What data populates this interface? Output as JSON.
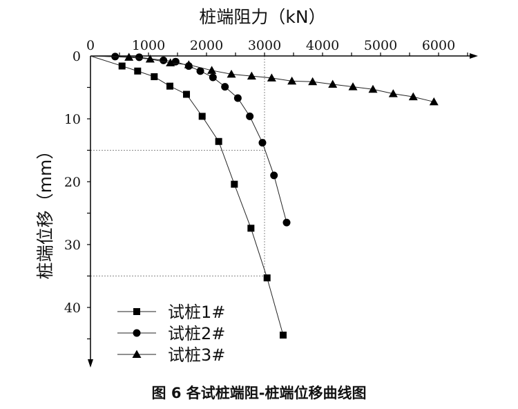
{
  "chart_data": {
    "type": "line",
    "title": "图 6 各试桩端阻-桩端位移曲线图",
    "xlabel": "桩端阻力（kN）",
    "ylabel": "桩端位移（mm）",
    "xlim": [
      0,
      6600
    ],
    "ylim": [
      0,
      49
    ],
    "y_inverted": true,
    "x_ticks": [
      0,
      1000,
      2000,
      3000,
      4000,
      5000,
      6000
    ],
    "y_ticks": [
      0,
      10,
      20,
      30,
      40
    ],
    "x_tick_labels": [
      "0",
      "1000",
      "2000",
      "3000",
      "4000",
      "5000",
      "6000"
    ],
    "y_tick_labels": [
      "0",
      "10",
      "20",
      "30",
      "40"
    ],
    "legend_position": "bottom-left",
    "reference_lines": {
      "vertical_x": 3000,
      "horizontal_y": [
        15,
        35
      ]
    },
    "series": [
      {
        "name": "试桩1#",
        "marker": "square",
        "x": [
          0,
          544,
          813,
          1099,
          1369,
          1655,
          1925,
          2210,
          2480,
          2766,
          3044,
          3321
        ],
        "y": [
          0,
          1.6,
          2.4,
          3.3,
          4.8,
          6.1,
          9.6,
          13.6,
          20.4,
          27.4,
          35.3,
          44.4
        ]
      },
      {
        "name": "试桩2#",
        "marker": "circle",
        "x": [
          0,
          425,
          840,
          1258,
          1468,
          1694,
          1893,
          2111,
          2318,
          2540,
          2746,
          2964,
          3163,
          3381
        ],
        "y": [
          0,
          0.1,
          0.2,
          0.7,
          0.9,
          1.6,
          2.4,
          3.4,
          4.9,
          6.7,
          9.6,
          13.8,
          19.0,
          26.5
        ]
      },
      {
        "name": "试桩3#",
        "marker": "triangle",
        "x": [
          0,
          663,
          1028,
          1377,
          1694,
          2091,
          2429,
          2778,
          3123,
          3472,
          3829,
          4175,
          4524,
          4869,
          5218,
          5563,
          5920
        ],
        "y": [
          0,
          0.2,
          0.5,
          1.1,
          1.4,
          2.3,
          2.9,
          3.2,
          3.5,
          4.0,
          4.1,
          4.5,
          4.9,
          5.3,
          6.0,
          6.5,
          7.3
        ]
      }
    ]
  }
}
